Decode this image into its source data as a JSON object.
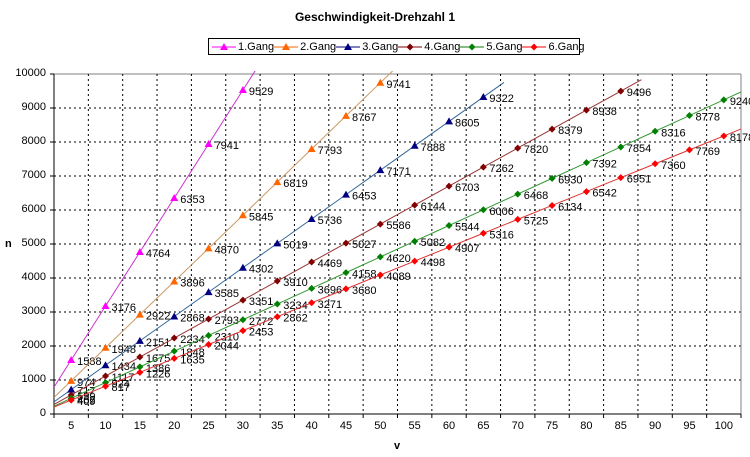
{
  "chart_data": {
    "type": "line",
    "title": "Geschwindigkeit-Drehzahl 1",
    "xlabel": "v",
    "ylabel": "n",
    "ylim": [
      0,
      10000
    ],
    "y_ticks": [
      0,
      1000,
      2000,
      3000,
      4000,
      5000,
      6000,
      7000,
      8000,
      9000,
      10000
    ],
    "grid": true,
    "legend_position": "top",
    "categories": [
      5,
      10,
      15,
      20,
      25,
      30,
      35,
      40,
      45,
      50,
      55,
      60,
      65,
      70,
      75,
      80,
      85,
      90,
      95,
      100
    ],
    "series": [
      {
        "name": "1.Gang",
        "marker": "triangle",
        "marker_color": "#FF00FF",
        "line_color": "#CC33CC",
        "values": [
          1588,
          3176,
          4764,
          6353,
          7941,
          9529
        ]
      },
      {
        "name": "2.Gang",
        "marker": "triangle",
        "marker_color": "#FF6600",
        "line_color": "#CC9966",
        "values": [
          974,
          1948,
          2922,
          3896,
          4870,
          5845,
          6819,
          7793,
          8767,
          9741
        ]
      },
      {
        "name": "3.Gang",
        "marker": "triangle",
        "marker_color": "#000080",
        "line_color": "#336699",
        "values": [
          717,
          1434,
          2151,
          2868,
          3585,
          4302,
          5019,
          5736,
          6453,
          7171,
          7888,
          8605,
          9322
        ]
      },
      {
        "name": "4.Gang",
        "marker": "diamond",
        "marker_color": "#800000",
        "line_color": "#993333",
        "values": [
          559,
          1117,
          1675,
          2234,
          2793,
          3351,
          3910,
          4469,
          5027,
          5586,
          6144,
          6703,
          7262,
          7820,
          8379,
          8938,
          9496
        ]
      },
      {
        "name": "5.Gang",
        "marker": "diamond",
        "marker_color": "#008000",
        "line_color": "#339933",
        "values": [
          462,
          924,
          1386,
          1848,
          2310,
          2772,
          3234,
          3696,
          4158,
          4620,
          5082,
          5544,
          6006,
          6468,
          6930,
          7392,
          7854,
          8316,
          8778,
          9240
        ]
      },
      {
        "name": "6.Gang",
        "marker": "diamond",
        "marker_color": "#FF0000",
        "line_color": "#E03030",
        "values": [
          409,
          817,
          1226,
          1635,
          2044,
          2453,
          2862,
          3271,
          3680,
          4089,
          4498,
          4907,
          5316,
          5725,
          6134,
          6542,
          6951,
          7360,
          7769,
          8178
        ]
      }
    ]
  }
}
